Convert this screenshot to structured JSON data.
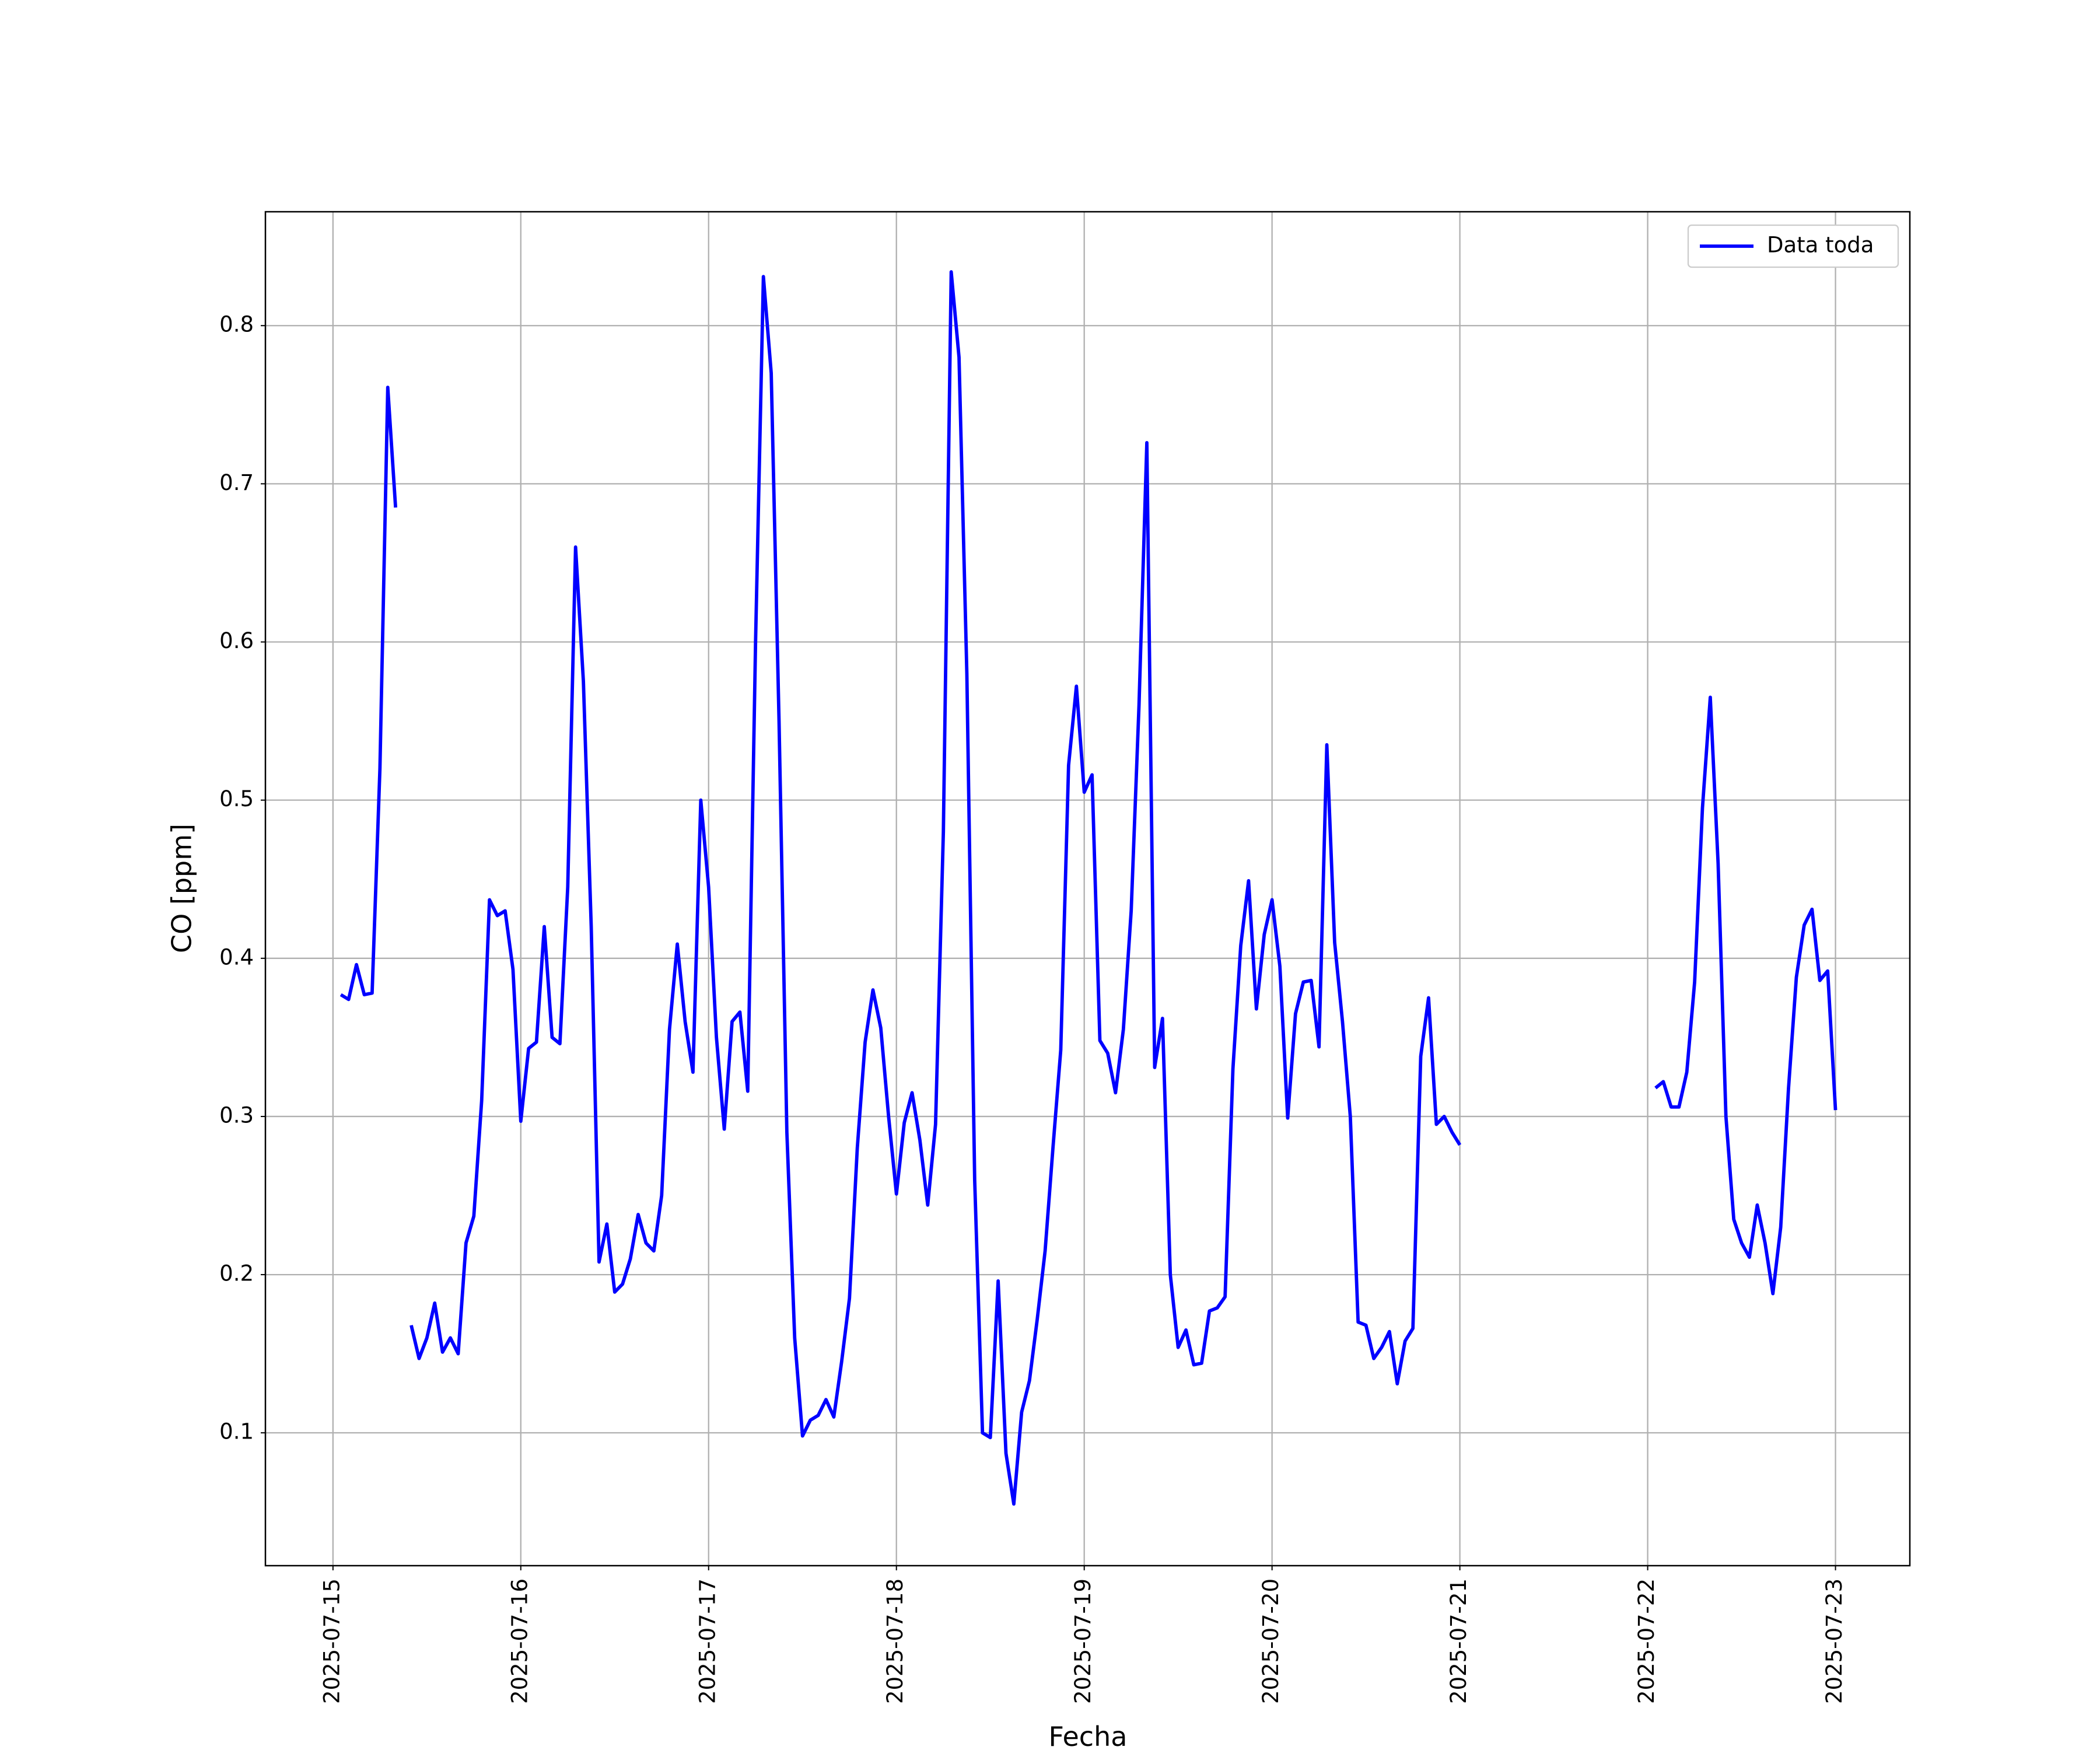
{
  "chart_data": {
    "type": "line",
    "xlabel": "Fecha",
    "ylabel": "CO [ppm]",
    "x": [
      "2025-07-15 01:00",
      "2025-07-15 02:00",
      "2025-07-15 03:00",
      "2025-07-15 04:00",
      "2025-07-15 05:00",
      "2025-07-15 06:00",
      "2025-07-15 07:00",
      "2025-07-15 08:00",
      "2025-07-15 09:00",
      "2025-07-15 10:00",
      "2025-07-15 11:00",
      "2025-07-15 12:00",
      "2025-07-15 13:00",
      "2025-07-15 14:00",
      "2025-07-15 15:00",
      "2025-07-15 16:00",
      "2025-07-15 17:00",
      "2025-07-15 18:00",
      "2025-07-15 19:00",
      "2025-07-15 20:00",
      "2025-07-15 21:00",
      "2025-07-15 22:00",
      "2025-07-15 23:00",
      "2025-07-16 00:00",
      "2025-07-16 01:00",
      "2025-07-16 02:00",
      "2025-07-16 03:00",
      "2025-07-16 04:00",
      "2025-07-16 05:00",
      "2025-07-16 06:00",
      "2025-07-16 07:00",
      "2025-07-16 08:00",
      "2025-07-16 09:00",
      "2025-07-16 10:00",
      "2025-07-16 11:00",
      "2025-07-16 12:00",
      "2025-07-16 13:00",
      "2025-07-16 14:00",
      "2025-07-16 15:00",
      "2025-07-16 16:00",
      "2025-07-16 17:00",
      "2025-07-16 18:00",
      "2025-07-16 19:00",
      "2025-07-16 20:00",
      "2025-07-16 21:00",
      "2025-07-16 22:00",
      "2025-07-16 23:00",
      "2025-07-17 00:00",
      "2025-07-17 01:00",
      "2025-07-17 02:00",
      "2025-07-17 03:00",
      "2025-07-17 04:00",
      "2025-07-17 05:00",
      "2025-07-17 06:00",
      "2025-07-17 07:00",
      "2025-07-17 08:00",
      "2025-07-17 09:00",
      "2025-07-17 10:00",
      "2025-07-17 11:00",
      "2025-07-17 12:00",
      "2025-07-17 13:00",
      "2025-07-17 14:00",
      "2025-07-17 15:00",
      "2025-07-17 16:00",
      "2025-07-17 17:00",
      "2025-07-17 18:00",
      "2025-07-17 19:00",
      "2025-07-17 20:00",
      "2025-07-17 21:00",
      "2025-07-17 22:00",
      "2025-07-17 23:00",
      "2025-07-18 00:00",
      "2025-07-18 01:00",
      "2025-07-18 02:00",
      "2025-07-18 03:00",
      "2025-07-18 04:00",
      "2025-07-18 05:00",
      "2025-07-18 06:00",
      "2025-07-18 07:00",
      "2025-07-18 08:00",
      "2025-07-18 09:00",
      "2025-07-18 10:00",
      "2025-07-18 11:00",
      "2025-07-18 12:00",
      "2025-07-18 13:00",
      "2025-07-18 14:00",
      "2025-07-18 15:00",
      "2025-07-18 16:00",
      "2025-07-18 17:00",
      "2025-07-18 18:00",
      "2025-07-18 19:00",
      "2025-07-18 20:00",
      "2025-07-18 21:00",
      "2025-07-18 22:00",
      "2025-07-18 23:00",
      "2025-07-19 00:00",
      "2025-07-19 01:00",
      "2025-07-19 02:00",
      "2025-07-19 03:00",
      "2025-07-19 04:00",
      "2025-07-19 05:00",
      "2025-07-19 06:00",
      "2025-07-19 07:00",
      "2025-07-19 08:00",
      "2025-07-19 09:00",
      "2025-07-19 10:00",
      "2025-07-19 11:00",
      "2025-07-19 12:00",
      "2025-07-19 13:00",
      "2025-07-19 14:00",
      "2025-07-19 15:00",
      "2025-07-19 16:00",
      "2025-07-19 17:00",
      "2025-07-19 18:00",
      "2025-07-19 19:00",
      "2025-07-19 20:00",
      "2025-07-19 21:00",
      "2025-07-19 22:00",
      "2025-07-19 23:00",
      "2025-07-20 00:00",
      "2025-07-20 01:00",
      "2025-07-20 02:00",
      "2025-07-20 03:00",
      "2025-07-20 04:00",
      "2025-07-20 05:00",
      "2025-07-20 06:00",
      "2025-07-20 07:00",
      "2025-07-20 08:00",
      "2025-07-20 09:00",
      "2025-07-20 10:00",
      "2025-07-20 11:00",
      "2025-07-20 12:00",
      "2025-07-20 13:00",
      "2025-07-20 14:00",
      "2025-07-20 15:00",
      "2025-07-20 16:00",
      "2025-07-20 17:00",
      "2025-07-20 18:00",
      "2025-07-20 19:00",
      "2025-07-20 20:00",
      "2025-07-20 21:00",
      "2025-07-20 22:00",
      "2025-07-20 23:00",
      "2025-07-21 00:00",
      "2025-07-21 01:00",
      "2025-07-22 01:00",
      "2025-07-22 02:00",
      "2025-07-22 03:00",
      "2025-07-22 04:00",
      "2025-07-22 05:00",
      "2025-07-22 06:00",
      "2025-07-22 07:00",
      "2025-07-22 08:00",
      "2025-07-22 09:00",
      "2025-07-22 10:00",
      "2025-07-22 11:00",
      "2025-07-22 12:00",
      "2025-07-22 13:00",
      "2025-07-22 14:00",
      "2025-07-22 15:00",
      "2025-07-22 16:00",
      "2025-07-22 17:00",
      "2025-07-22 18:00",
      "2025-07-22 19:00",
      "2025-07-22 20:00",
      "2025-07-22 21:00",
      "2025-07-22 22:00",
      "2025-07-22 23:00",
      "2025-07-23 00:00"
    ],
    "series": [
      {
        "name": "Data toda",
        "color": "#0000ff",
        "values": [
          0.377,
          0.374,
          0.396,
          0.377,
          0.378,
          0.52,
          0.761,
          0.685,
          null,
          0.168,
          0.147,
          0.16,
          0.182,
          0.151,
          0.16,
          0.15,
          0.22,
          0.237,
          0.31,
          0.437,
          0.427,
          0.43,
          0.393,
          0.297,
          0.343,
          0.347,
          0.42,
          0.35,
          0.346,
          0.445,
          0.66,
          0.575,
          0.42,
          0.208,
          0.232,
          0.189,
          0.194,
          0.21,
          0.238,
          0.22,
          0.215,
          0.25,
          0.355,
          0.409,
          0.36,
          0.328,
          0.5,
          0.445,
          0.35,
          0.292,
          0.36,
          0.366,
          0.316,
          0.6,
          0.831,
          0.77,
          0.55,
          0.29,
          0.16,
          0.098,
          0.108,
          0.111,
          0.121,
          0.11,
          0.145,
          0.185,
          0.28,
          0.347,
          0.38,
          0.356,
          0.3,
          0.251,
          0.296,
          0.315,
          0.285,
          0.244,
          0.295,
          0.48,
          0.834,
          0.78,
          0.58,
          0.26,
          0.1,
          0.097,
          0.196,
          0.087,
          0.055,
          0.113,
          0.133,
          0.172,
          0.215,
          0.28,
          0.342,
          0.522,
          0.572,
          0.505,
          0.516,
          0.348,
          0.34,
          0.315,
          0.355,
          0.43,
          0.56,
          0.726,
          0.331,
          0.362,
          0.2,
          0.154,
          0.165,
          0.143,
          0.144,
          0.177,
          0.179,
          0.186,
          0.33,
          0.408,
          0.449,
          0.368,
          0.415,
          0.437,
          0.395,
          0.299,
          0.365,
          0.385,
          0.386,
          0.344,
          0.535,
          0.41,
          0.36,
          0.3,
          0.17,
          0.168,
          0.147,
          0.154,
          0.164,
          0.131,
          0.158,
          0.166,
          0.338,
          0.375,
          0.295,
          0.3,
          0.29,
          0.282,
          null,
          0.318,
          0.322,
          0.306,
          0.306,
          0.328,
          0.385,
          0.495,
          0.565,
          0.46,
          0.3,
          0.235,
          0.22,
          0.211,
          0.244,
          0.22,
          0.188,
          0.23,
          0.318,
          0.388,
          0.421,
          0.431,
          0.386,
          0.392,
          0.304
        ]
      }
    ],
    "xlim": [
      "2025-07-14 15:22",
      "2025-07-23 09:30"
    ],
    "xticks": [
      "2025-07-15",
      "2025-07-16",
      "2025-07-17",
      "2025-07-18",
      "2025-07-19",
      "2025-07-20",
      "2025-07-21",
      "2025-07-22",
      "2025-07-23"
    ],
    "ylim": [
      0.016,
      0.872
    ],
    "yticks": [
      0.1,
      0.2,
      0.3,
      0.4,
      0.5,
      0.6,
      0.7,
      0.8
    ],
    "grid": true,
    "legend": "upper-right"
  }
}
